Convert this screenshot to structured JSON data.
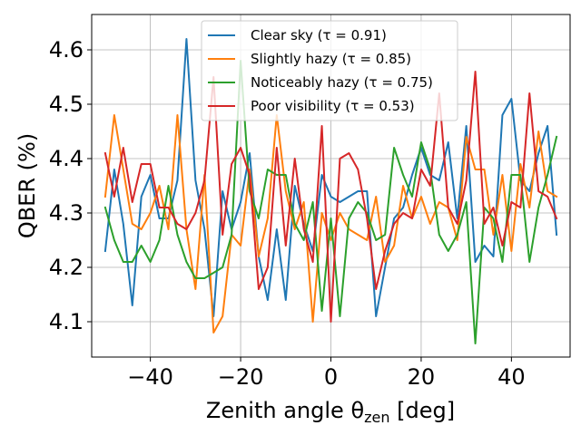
{
  "chart_data": {
    "type": "line",
    "xlabel": "Zenith angle θ",
    "xlabel_sub": "zen",
    "xlabel_unit": " [deg]",
    "ylabel": "QBER (%)",
    "xlim": [
      -53,
      53
    ],
    "ylim": [
      4.035,
      4.665
    ],
    "x_ticks": [
      -40,
      -20,
      0,
      20,
      40
    ],
    "x_tick_labels": [
      "−40",
      "−20",
      "0",
      "20",
      "40"
    ],
    "y_ticks": [
      4.1,
      4.2,
      4.3,
      4.4,
      4.5,
      4.6
    ],
    "y_tick_labels": [
      "4.1",
      "4.2",
      "4.3",
      "4.4",
      "4.5",
      "4.6"
    ],
    "grid": true,
    "legend_position": "top-center",
    "x": [
      -50,
      -48,
      -46,
      -44,
      -42,
      -40,
      -38,
      -36,
      -34,
      -32,
      -30,
      -28,
      -26,
      -24,
      -22,
      -20,
      -18,
      -16,
      -14,
      -12,
      -10,
      -8,
      -6,
      -4,
      -2,
      0,
      2,
      4,
      6,
      8,
      10,
      12,
      14,
      16,
      18,
      20,
      22,
      24,
      26,
      28,
      30,
      32,
      34,
      36,
      38,
      40,
      42,
      44,
      46,
      48,
      50
    ],
    "series": [
      {
        "name": "Clear sky (τ = 0.91)",
        "color": "#1f77b4",
        "values": [
          4.23,
          4.38,
          4.28,
          4.13,
          4.33,
          4.37,
          4.29,
          4.29,
          4.36,
          4.62,
          4.36,
          4.27,
          4.11,
          4.34,
          4.27,
          4.32,
          4.41,
          4.22,
          4.14,
          4.27,
          4.14,
          4.35,
          4.28,
          4.23,
          4.37,
          4.33,
          4.32,
          4.33,
          4.34,
          4.34,
          4.11,
          4.2,
          4.29,
          4.31,
          4.37,
          4.42,
          4.37,
          4.36,
          4.43,
          4.29,
          4.46,
          4.21,
          4.24,
          4.22,
          4.48,
          4.51,
          4.36,
          4.34,
          4.41,
          4.46,
          4.26
        ]
      },
      {
        "name": "Slightly hazy (τ = 0.85)",
        "color": "#ff7f0e",
        "values": [
          4.33,
          4.48,
          4.38,
          4.28,
          4.27,
          4.3,
          4.35,
          4.27,
          4.48,
          4.27,
          4.16,
          4.37,
          4.08,
          4.11,
          4.26,
          4.24,
          4.38,
          4.22,
          4.29,
          4.48,
          4.34,
          4.27,
          4.32,
          4.1,
          4.3,
          4.25,
          4.3,
          4.27,
          4.26,
          4.25,
          4.33,
          4.21,
          4.24,
          4.35,
          4.29,
          4.33,
          4.28,
          4.32,
          4.31,
          4.25,
          4.44,
          4.38,
          4.38,
          4.26,
          4.37,
          4.23,
          4.39,
          4.31,
          4.45,
          4.34,
          4.33
        ]
      },
      {
        "name": "Noticeably hazy (τ = 0.75)",
        "color": "#2ca02c",
        "values": [
          4.31,
          4.25,
          4.21,
          4.21,
          4.24,
          4.21,
          4.25,
          4.35,
          4.26,
          4.21,
          4.18,
          4.18,
          4.19,
          4.2,
          4.26,
          4.58,
          4.34,
          4.29,
          4.38,
          4.37,
          4.37,
          4.28,
          4.25,
          4.32,
          4.12,
          4.29,
          4.11,
          4.29,
          4.32,
          4.3,
          4.25,
          4.26,
          4.42,
          4.37,
          4.33,
          4.43,
          4.38,
          4.26,
          4.23,
          4.26,
          4.32,
          4.06,
          4.31,
          4.29,
          4.21,
          4.37,
          4.37,
          4.21,
          4.31,
          4.37,
          4.44
        ]
      },
      {
        "name": "Poor visibility (τ = 0.53)",
        "color": "#d62728",
        "values": [
          4.41,
          4.33,
          4.42,
          4.32,
          4.39,
          4.39,
          4.31,
          4.31,
          4.28,
          4.27,
          4.3,
          4.36,
          4.55,
          4.26,
          4.39,
          4.42,
          4.37,
          4.16,
          4.2,
          4.42,
          4.24,
          4.4,
          4.27,
          4.21,
          4.46,
          4.1,
          4.4,
          4.41,
          4.38,
          4.29,
          4.16,
          4.23,
          4.28,
          4.3,
          4.29,
          4.38,
          4.35,
          4.52,
          4.31,
          4.28,
          4.36,
          4.56,
          4.28,
          4.31,
          4.24,
          4.32,
          4.31,
          4.52,
          4.34,
          4.33,
          4.29
        ]
      }
    ]
  }
}
